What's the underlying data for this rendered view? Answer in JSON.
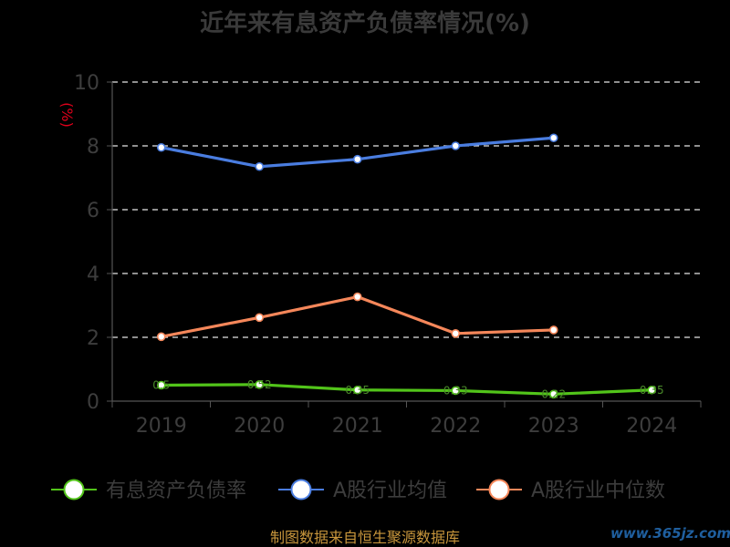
{
  "chart_data": {
    "type": "line",
    "title": "近年来有息资产负债率情况(%)",
    "ylabel": "(%)",
    "xlabel": "",
    "categories": [
      "2019",
      "2020",
      "2021",
      "2022",
      "2023",
      "2024"
    ],
    "ylim": [
      0,
      10
    ],
    "yticks": [
      0,
      2,
      4,
      6,
      8,
      10
    ],
    "grid": true,
    "legend_position": "bottom",
    "series": [
      {
        "name": "有息资产负债率",
        "color": "#52c41a",
        "values": [
          0.5,
          0.52,
          0.35,
          0.33,
          0.22,
          0.35
        ],
        "labels": [
          "0.5",
          "0.52",
          "0.35",
          "0.33",
          "0.22",
          "0.35"
        ]
      },
      {
        "name": "A股行业均值",
        "color": "#4a7de0",
        "values": [
          7.95,
          7.35,
          7.58,
          8.0,
          8.25,
          null
        ]
      },
      {
        "name": "A股行业中位数",
        "color": "#f5875a",
        "values": [
          2.02,
          2.62,
          3.27,
          2.12,
          2.23,
          null
        ]
      }
    ],
    "source": "制图数据来自恒生聚源数据库",
    "watermark": "www.365jz.com"
  }
}
